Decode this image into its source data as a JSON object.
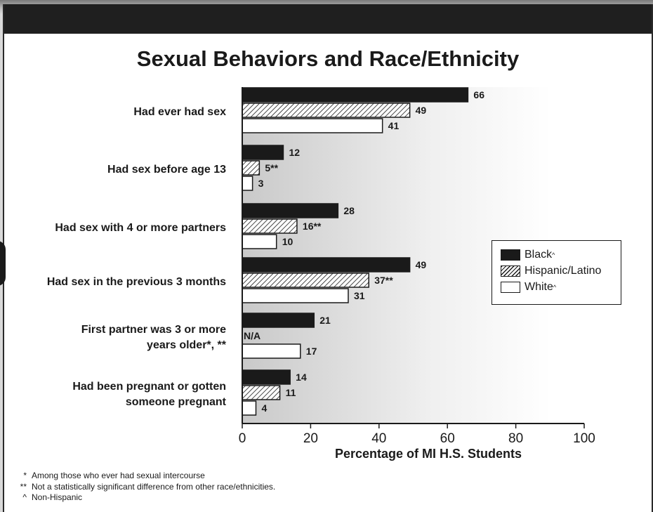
{
  "chart_data": {
    "type": "bar",
    "orientation": "horizontal",
    "title": "Sexual Behaviors and Race/Ethnicity",
    "xlabel": "Percentage of MI H.S. Students",
    "xlim": [
      0,
      100
    ],
    "xticks": [
      0,
      20,
      40,
      60,
      80,
      100
    ],
    "categories": [
      [
        "Had ever had sex"
      ],
      [
        "Had sex before age 13"
      ],
      [
        "Had sex with 4 or more partners"
      ],
      [
        "Had sex in the previous 3 months"
      ],
      [
        "First partner was 3 or more",
        "years older*, **"
      ],
      [
        "Had been pregnant or gotten",
        "someone pregnant"
      ]
    ],
    "series": [
      {
        "name": "Black^",
        "style": "solid-black",
        "values": [
          66,
          12,
          28,
          49,
          21,
          14
        ],
        "labels": [
          "66",
          "12",
          "28",
          "49",
          "21",
          "14"
        ]
      },
      {
        "name": "Hispanic/Latino",
        "style": "hatched",
        "values": [
          49,
          5,
          16,
          37,
          null,
          11
        ],
        "labels": [
          "49",
          "5**",
          "16**",
          "37**",
          "N/A",
          "11"
        ]
      },
      {
        "name": "White^",
        "style": "white",
        "values": [
          41,
          3,
          10,
          31,
          17,
          4
        ],
        "labels": [
          "41",
          "3",
          "10",
          "31",
          "17",
          "4"
        ]
      }
    ],
    "legend_position": "right",
    "grid": false
  },
  "legend": {
    "items": [
      {
        "label": "Black",
        "mark": "^"
      },
      {
        "label": "Hispanic/Latino",
        "mark": ""
      },
      {
        "label": "White",
        "mark": "^"
      }
    ]
  },
  "footnotes": [
    {
      "mark": "*",
      "text": "Among those who ever had sexual intercourse"
    },
    {
      "mark": "**",
      "text": "Not a statistically significant difference from other race/ethnicities."
    },
    {
      "mark": "^",
      "text": "Non-Hispanic"
    }
  ],
  "colors": {
    "dark": "#1a1a1a",
    "bar_black": "#1a1a1a",
    "bar_white": "#ffffff"
  }
}
